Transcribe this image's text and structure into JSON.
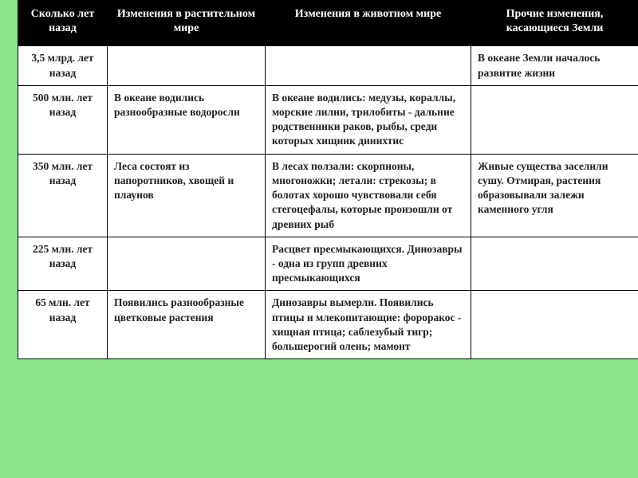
{
  "table": {
    "header_bg": "#000000",
    "header_color": "#ffffff",
    "page_bg": "#8be48b",
    "cell_bg": "#ffffff",
    "period_color": "#a19f98",
    "columns": [
      "Сколько лет назад",
      "Изменения в растительном мире",
      "Изменения в животном мире",
      "Прочие изменения, касающиеся Земли"
    ],
    "rows": [
      {
        "period": "3,5 млрд. лет назад",
        "plants": "",
        "animals": "",
        "other": "В океане Земли началось развитие жизни"
      },
      {
        "period": "500 млн. лет назад",
        "plants": "В   океане   водились разнообразные водоросли",
        "animals": "В океане водились: медузы, кораллы, морские лилии, трилобиты - дальние родственники раков, рыбы, среди которых хищник динихтис",
        "other": ""
      },
      {
        "period": "350 млн. лет назад",
        "plants": "Леса состоят  из папоротников, хвощей  и плаунов",
        "animals": "В лесах ползали: скорпионы, многоножки; летали: стрекозы; в болотах хорошо чувствовали   себя стегоцефалы, которые произошли от древних рыб",
        "other": "Живые   существа заселили сушу. Отмирая,   растения образовывали залежи   каменного угля"
      },
      {
        "period": "225 млн. лет назад",
        "plants": "",
        "animals": "Расцвет    пресмыкающихся. Динозавры - одна из групп древних пресмыкающихся",
        "other": ""
      },
      {
        "period": "65 млн. лет назад",
        "plants": "Появились разнообразные цветковые растения",
        "animals": "Динозавры вымерли. Появились  птицы  и млекопитающие:   фороракос -   хищная птица; саблезубый    тигр; большерогий олень; мамонт",
        "other": ""
      }
    ]
  }
}
